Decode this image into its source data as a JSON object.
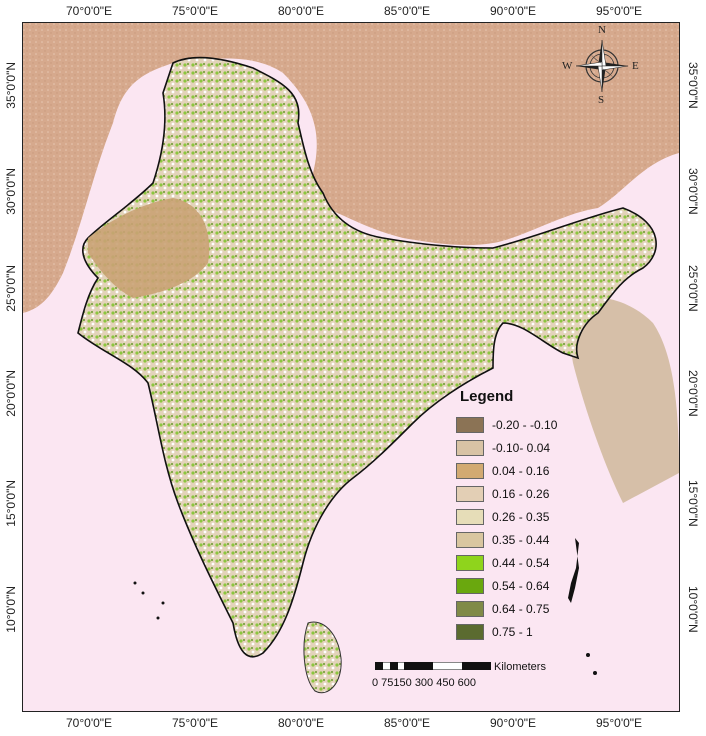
{
  "map": {
    "x_ticks": [
      "70°0'0\"E",
      "75°0'0\"E",
      "80°0'0\"E",
      "85°0'0\"E",
      "90°0'0\"E",
      "95°0'0\"E"
    ],
    "y_ticks": [
      "35°0'0\"N",
      "30°0'0\"N",
      "25°0'0\"N",
      "20°0'0\"N",
      "15°0'0\"N",
      "10°0'0\"N"
    ],
    "background_color": "#fbe6f2",
    "land_color": "#d4a98a"
  },
  "legend": {
    "title": "Legend",
    "items": [
      {
        "label": "-0.20 - -0.10",
        "color": "#8b7355"
      },
      {
        "label": "-0.10- 0.04",
        "color": "#d8c3a5"
      },
      {
        "label": "0.04 - 0.16",
        "color": "#d2aa72"
      },
      {
        "label": "0.16 - 0.26",
        "color": "#e3cfb5"
      },
      {
        "label": "0.26 - 0.35",
        "color": "#e6ddb8"
      },
      {
        "label": "0.35 - 0.44",
        "color": "#d9c6a0"
      },
      {
        "label": "0.44 - 0.54",
        "color": "#8fd41c"
      },
      {
        "label": "0.54 - 0.64",
        "color": "#6aa80e"
      },
      {
        "label": "0.64 - 0.75",
        "color": "#808a47"
      },
      {
        "label": "0.75 - 1",
        "color": "#5b6b30"
      }
    ]
  },
  "scalebar": {
    "unit": "Kilometers",
    "labels": "0 75150   300   450   600"
  },
  "compass": {
    "n": "N",
    "s": "S",
    "e": "E",
    "w": "W"
  }
}
